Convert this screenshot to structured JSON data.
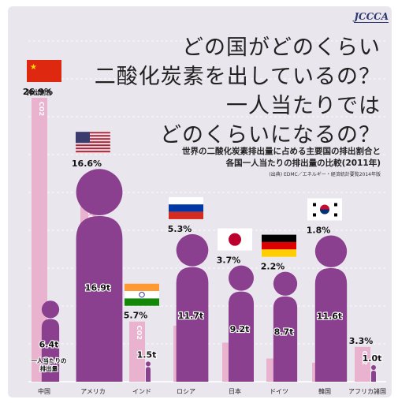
{
  "title": {
    "line1": "どの国がどのくらい",
    "line2": "二酸化炭素を出しているの？",
    "line3": "一人当たりでは",
    "line4": "どのくらいになるの？"
  },
  "subtitle": {
    "line1": "世界の二酸化炭素排出量に占める主要国の排出割合と",
    "line2": "各国一人当たりの排出量の比較(2011年)"
  },
  "source": "(出典) EDMC／エネルギー・経済統計要覧2014年版",
  "logo": "JCCCA",
  "labels": {
    "share_label": "排出割合",
    "per_capita_label_1": "一人当たりの",
    "per_capita_label_2": "排出量",
    "co2_tag": "CO2"
  },
  "colors": {
    "background": "#eae6ee",
    "share_bar": "#e9b3cf",
    "person": "#8b3f8f",
    "gridline": "#ffffff"
  },
  "chart_data": {
    "type": "bar",
    "categories": [
      "中国",
      "アメリカ",
      "インド",
      "ロシア",
      "日本",
      "ドイツ",
      "韓国",
      "アフリカ諸国"
    ],
    "series": [
      {
        "name": "排出割合",
        "unit": "%",
        "values": [
          26.9,
          16.6,
          5.7,
          5.3,
          3.7,
          2.2,
          1.8,
          3.3
        ],
        "display": [
          "26.9%",
          "16.6%",
          "5.7%",
          "5.3%",
          "3.7%",
          "2.2%",
          "1.8%",
          "3.3%"
        ]
      },
      {
        "name": "一人当たりの排出量",
        "unit": "t",
        "values": [
          6.4,
          16.9,
          1.5,
          11.7,
          9.2,
          8.7,
          11.6,
          1.0
        ],
        "display": [
          "6.4",
          "16.9",
          "1.5",
          "11.7",
          "9.2",
          "8.7",
          "11.6",
          "1.0"
        ]
      }
    ],
    "flags": [
      "china-flag",
      "usa-flag",
      "india-flag",
      "russia-flag",
      "japan-flag",
      "germany-flag",
      "korea-flag",
      ""
    ]
  }
}
